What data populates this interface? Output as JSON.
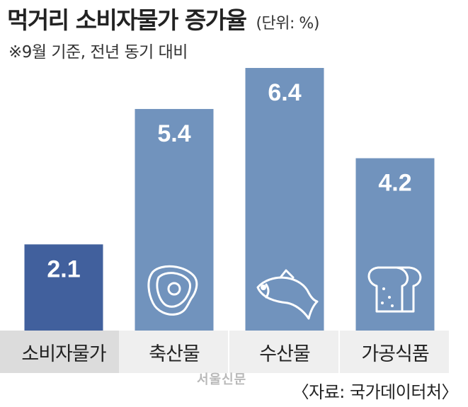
{
  "header": {
    "title": "먹거리 소비자물가 증가율",
    "unit": "(단위: %)",
    "subtitle": "※9월 기준, 전년 동기 대비"
  },
  "footer": {
    "source": "〈자료: 국가데이터처〉",
    "watermark": "서울신문"
  },
  "colors": {
    "highlight_bar": "#41609d",
    "bar": "#7193bd",
    "label_highlight_bg": "#dcdcdc",
    "label_bg": "#efefef",
    "icon_stroke": "#ffffff"
  },
  "chart_data": {
    "type": "bar",
    "title": "먹거리 소비자물가 증가율",
    "unit": "%",
    "categories": [
      "소비자물가",
      "축산물",
      "수산물",
      "가공식품"
    ],
    "values": [
      2.1,
      5.4,
      6.4,
      4.2
    ],
    "data_labels": [
      "2.1",
      "5.4",
      "6.4",
      "4.2"
    ],
    "icons": [
      "",
      "meat-icon",
      "fish-icon",
      "bread-icon"
    ],
    "highlight_index": 0,
    "ylim": [
      0,
      6.4
    ],
    "grid": false,
    "legend": "none"
  }
}
